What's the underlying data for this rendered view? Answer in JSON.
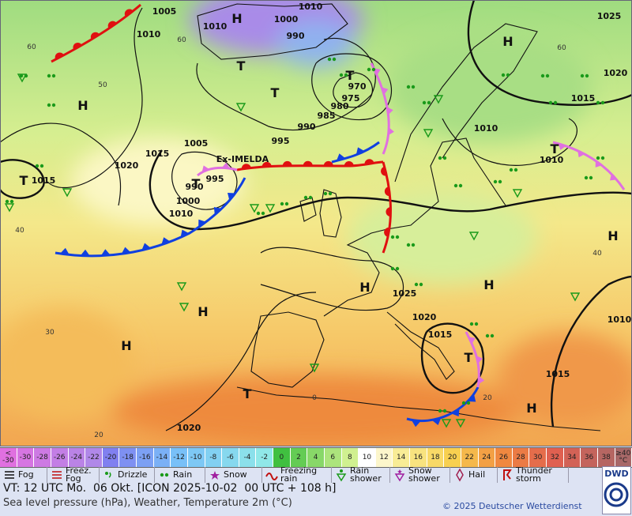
{
  "map": {
    "storm_name": "Ex-IMELDA",
    "isobar_labels": [
      "1005",
      "1010",
      "1010",
      "1000",
      "1010",
      "990",
      "1025",
      "1020",
      "1015",
      "1010",
      "1010",
      "970",
      "975",
      "980",
      "985",
      "990",
      "995",
      "1005",
      "1015",
      "1020",
      "995",
      "990",
      "1000",
      "1010",
      "1015",
      "1025",
      "1020",
      "1015",
      "1015",
      "1010",
      "1020"
    ],
    "pressure_centers": [
      "H",
      "T",
      "T",
      "T",
      "H",
      "H",
      "T",
      "T",
      "T",
      "H",
      "H",
      "H",
      "H",
      "H",
      "T",
      "T",
      "H"
    ],
    "latitude_labels": [
      "60",
      "50",
      "40",
      "30",
      "20",
      "60",
      "60",
      "40",
      "0",
      "20"
    ]
  },
  "temperature_scale": {
    "labels": [
      "< -30",
      "-30",
      "-28",
      "-26",
      "-24",
      "-22",
      "-20",
      "-18",
      "-16",
      "-14",
      "-12",
      "-10",
      "-8",
      "-6",
      "-4",
      "-2",
      "0",
      "2",
      "4",
      "6",
      "8",
      "10",
      "12",
      "14",
      "16",
      "18",
      "20",
      "22",
      "24",
      "26",
      "28",
      "30",
      "32",
      "34",
      "36",
      "38",
      "≥40 °C"
    ]
  },
  "weather_legend": {
    "items": [
      "Fog",
      "Freez. Fog",
      "Drizzle",
      "Rain",
      "Snow",
      "Freezing rain",
      "Rain shower",
      "Snow shower",
      "Hail",
      "Thunder storm"
    ]
  },
  "footer": {
    "valid_time": "VT: 12 UTC Mo.  06 Okt. [ICON 2025-10-02  00 UTC + 108 h]",
    "description": "Sea level pressure (hPa), Weather, Temperature 2m (°C)",
    "copyright": "© 2025 Deutscher Wetterdienst",
    "logo": "DWD"
  }
}
